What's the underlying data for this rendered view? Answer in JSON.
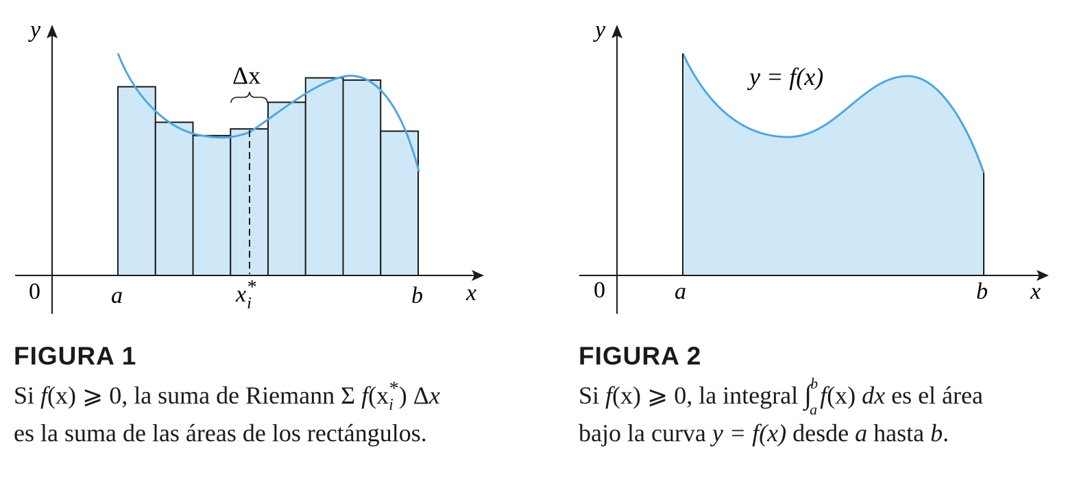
{
  "colors": {
    "fill": "#cfe8f8",
    "curve": "#4fa7e0",
    "ink": "#1a1a1a"
  },
  "figure1": {
    "axis_y_label": "y",
    "axis_x_label": "x",
    "origin_label": "0",
    "a_label": "a",
    "b_label": "b",
    "xi_label": "x",
    "xi_sub": "i",
    "xi_sup": "*",
    "delta_label": "Δx",
    "title": "FIGURA 1",
    "caption": {
      "line1_pre": "Si ",
      "line1_f": "f",
      "line1_x": "(x) ⩾ 0, la suma de Riemann Σ ",
      "line1_f2": "f",
      "line1_xi": "(x",
      "line1_sub": "i",
      "line1_sup": "*",
      "line1_tail": ") Δ",
      "line1_x2": "x",
      "line2": "es la suma de las áreas de los rectángulos."
    },
    "chart_data": {
      "type": "bar",
      "n_rectangles": 8,
      "rectangle_heights": [
        0.85,
        0.69,
        0.63,
        0.66,
        0.78,
        0.89,
        0.88,
        0.65
      ]
    }
  },
  "figure2": {
    "axis_y_label": "y",
    "axis_x_label": "x",
    "origin_label": "0",
    "a_label": "a",
    "b_label": "b",
    "curve_label": "y = f(x)",
    "title": "FIGURA 2",
    "caption": {
      "line1_pre": "Si ",
      "line1_f": "f",
      "line1_mid": "(x) ⩾ 0, la integral ",
      "integral": "∫",
      "upper": "b",
      "lower": "a",
      "line1_f2": "f",
      "line1_x": "(x) ",
      "line1_dx": "dx",
      "line1_tail": " es el área",
      "line2_pre": "bajo la curva ",
      "line2_eq": "y = f(x)",
      "line2_mid": " desde ",
      "line2_a": "a",
      "line2_hasta": " hasta ",
      "line2_b": "b",
      "line2_end": "."
    }
  }
}
